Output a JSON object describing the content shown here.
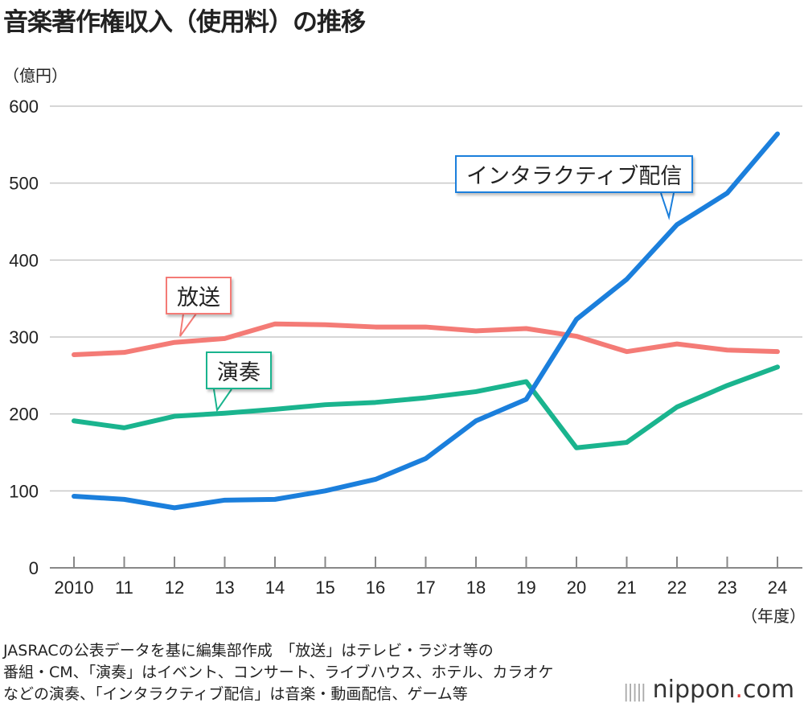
{
  "title": "音楽著作権収入（使用料）の推移",
  "note_lines": [
    "JASRACの公表データを基に編集部作成　「放送」はテレビ・ラジオ等の",
    "番組・CM、「演奏」はイベント、コンサート、ライブハウス、ホテル、カラオケ",
    "などの演奏、「インタラクティブ配信」は音楽・動画配信、ゲーム等"
  ],
  "logo": {
    "name": "nippon",
    "dot": ".",
    "tld": "com"
  },
  "chart_data": {
    "type": "line",
    "title": "音楽著作権収入（使用料）の推移",
    "ylabel": "（億円）",
    "xlabel": "（年度）",
    "categories": [
      "2010",
      "11",
      "12",
      "13",
      "14",
      "15",
      "16",
      "17",
      "18",
      "19",
      "20",
      "21",
      "22",
      "23",
      "24"
    ],
    "ylim": [
      0,
      600
    ],
    "yticks": [
      0,
      100,
      200,
      300,
      400,
      500,
      600
    ],
    "grid": true,
    "series": [
      {
        "name": "インタラクティブ配信",
        "color": "#1b7fdc",
        "values": [
          93,
          89,
          78,
          88,
          89,
          100,
          115,
          142,
          191,
          219,
          323,
          375,
          446,
          487,
          564
        ]
      },
      {
        "name": "放送",
        "color": "#f47b76",
        "values": [
          277,
          280,
          293,
          298,
          317,
          316,
          313,
          313,
          308,
          311,
          301,
          281,
          291,
          283,
          281
        ]
      },
      {
        "name": "演奏",
        "color": "#1ab48e",
        "values": [
          191,
          182,
          197,
          201,
          206,
          212,
          215,
          221,
          229,
          242,
          156,
          163,
          209,
          237,
          261
        ]
      }
    ]
  }
}
